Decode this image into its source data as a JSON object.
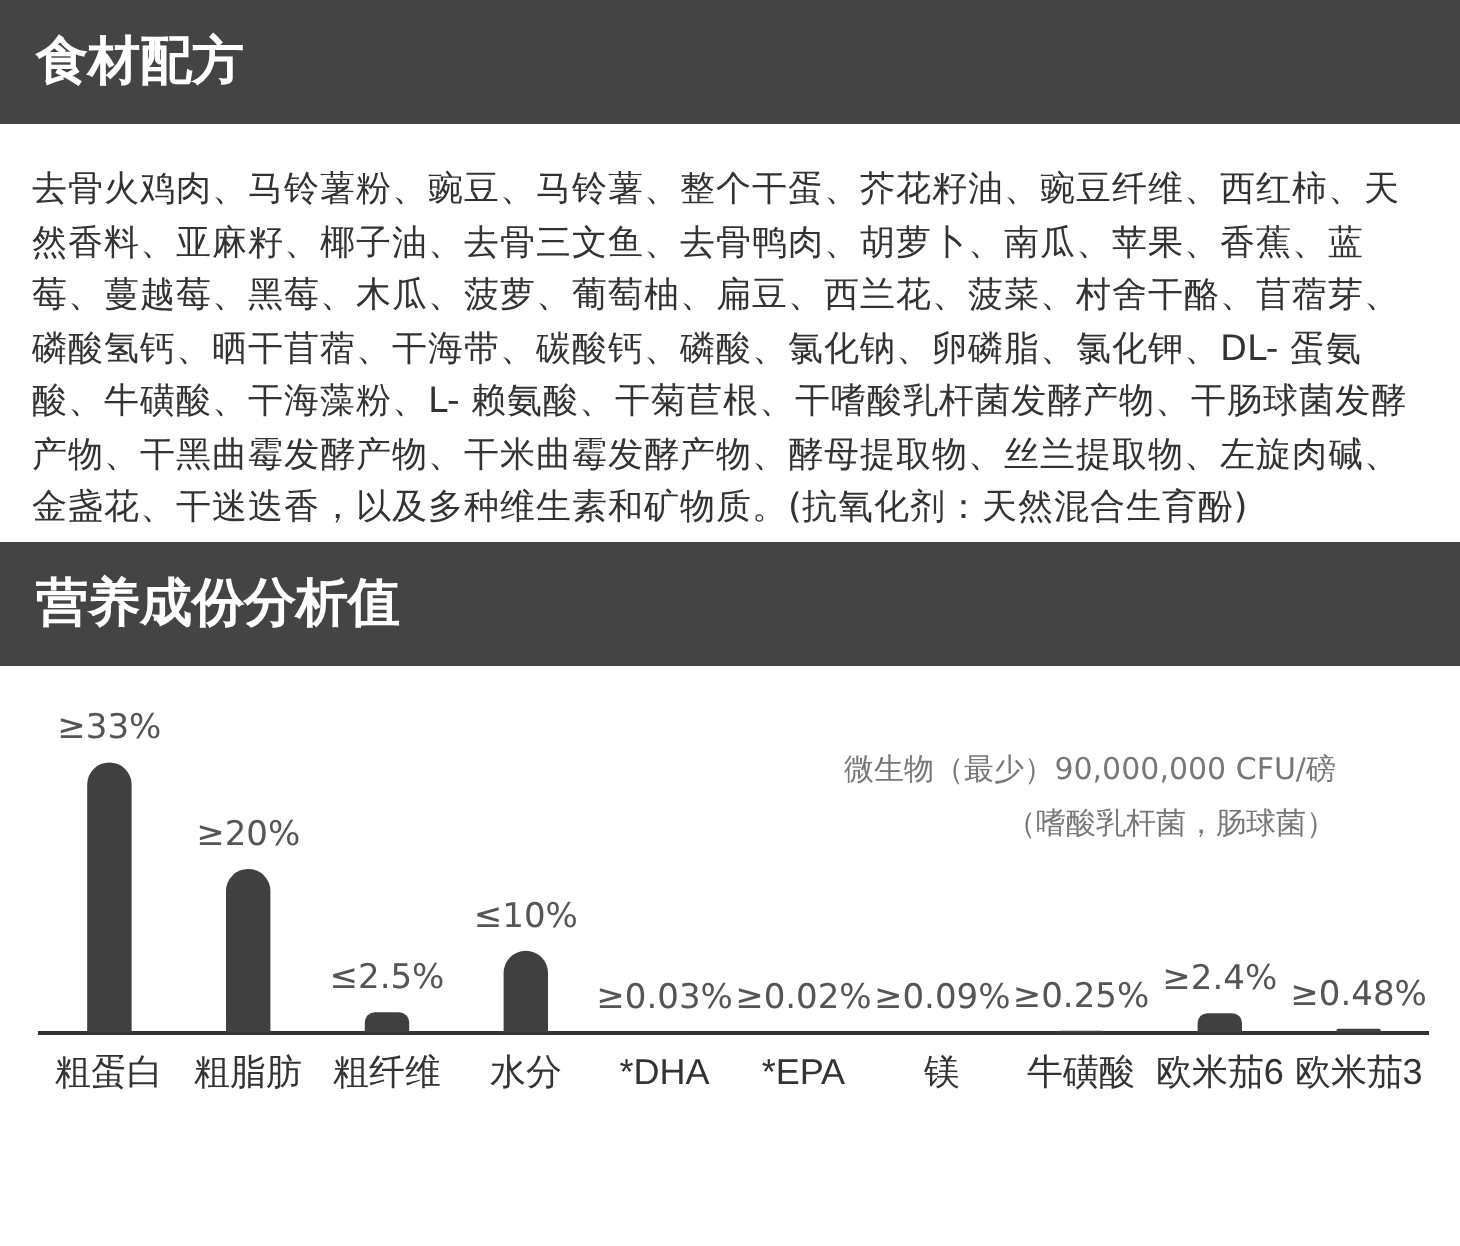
{
  "chart_data": {
    "type": "bar",
    "title": "营养成份分析值",
    "categories": [
      "粗蛋白",
      "粗脂肪",
      "粗纤维",
      "水分",
      "*DHA",
      "*EPA",
      "镁",
      "牛磺酸",
      "欧米茄6",
      "欧米茄3"
    ],
    "values": [
      33,
      20,
      2.5,
      10,
      0.03,
      0.02,
      0.09,
      0.25,
      2.4,
      0.48
    ],
    "value_labels": [
      "≥33%",
      "≥20%",
      "≤2.5%",
      "≤10%",
      "≥0.03%",
      "≥0.02%",
      "≥0.09%",
      "≥0.25%",
      "≥2.4%",
      "≥0.48%"
    ],
    "color": "#404040",
    "grid": false,
    "legend": false,
    "annotations": [
      "食材配方",
      "去骨火鸡肉、马铃薯粉、豌豆、马铃薯、整个干蛋、芥花籽油、豌豆纤维、西红柿、天然香料、亚麻籽、椰子油、去骨三文鱼、去骨鸭肉、胡萝卜、南瓜、苹果、香蕉、蓝莓、蔓越莓、黑莓、木瓜、菠萝、葡萄柚、扁豆、西兰花、菠菜、村舍干酪、苜蓿芽、磷酸氢钙、晒干苜蓿、干海带、碳酸钙、磷酸、氯化钠、卵磷脂、氯化钾、DL- 蛋氨酸、牛磺酸、干海藻粉、L- 赖氨酸、干菊苣根、干嗜酸乳杆菌发酵产物、干肠球菌发酵产物、干黑曲霉发酵产物、干米曲霉发酵产物、酵母提取物、丝兰提取物、左旋肉碱、金盏花、干迷迭香，以及多种维生素和矿物质。(抗氧化剂：天然混合生育酚)",
      "微生物（最少）90,000,000 CFU/磅",
      "（嗜酸乳杆菌，肠球菌）"
    ]
  }
}
